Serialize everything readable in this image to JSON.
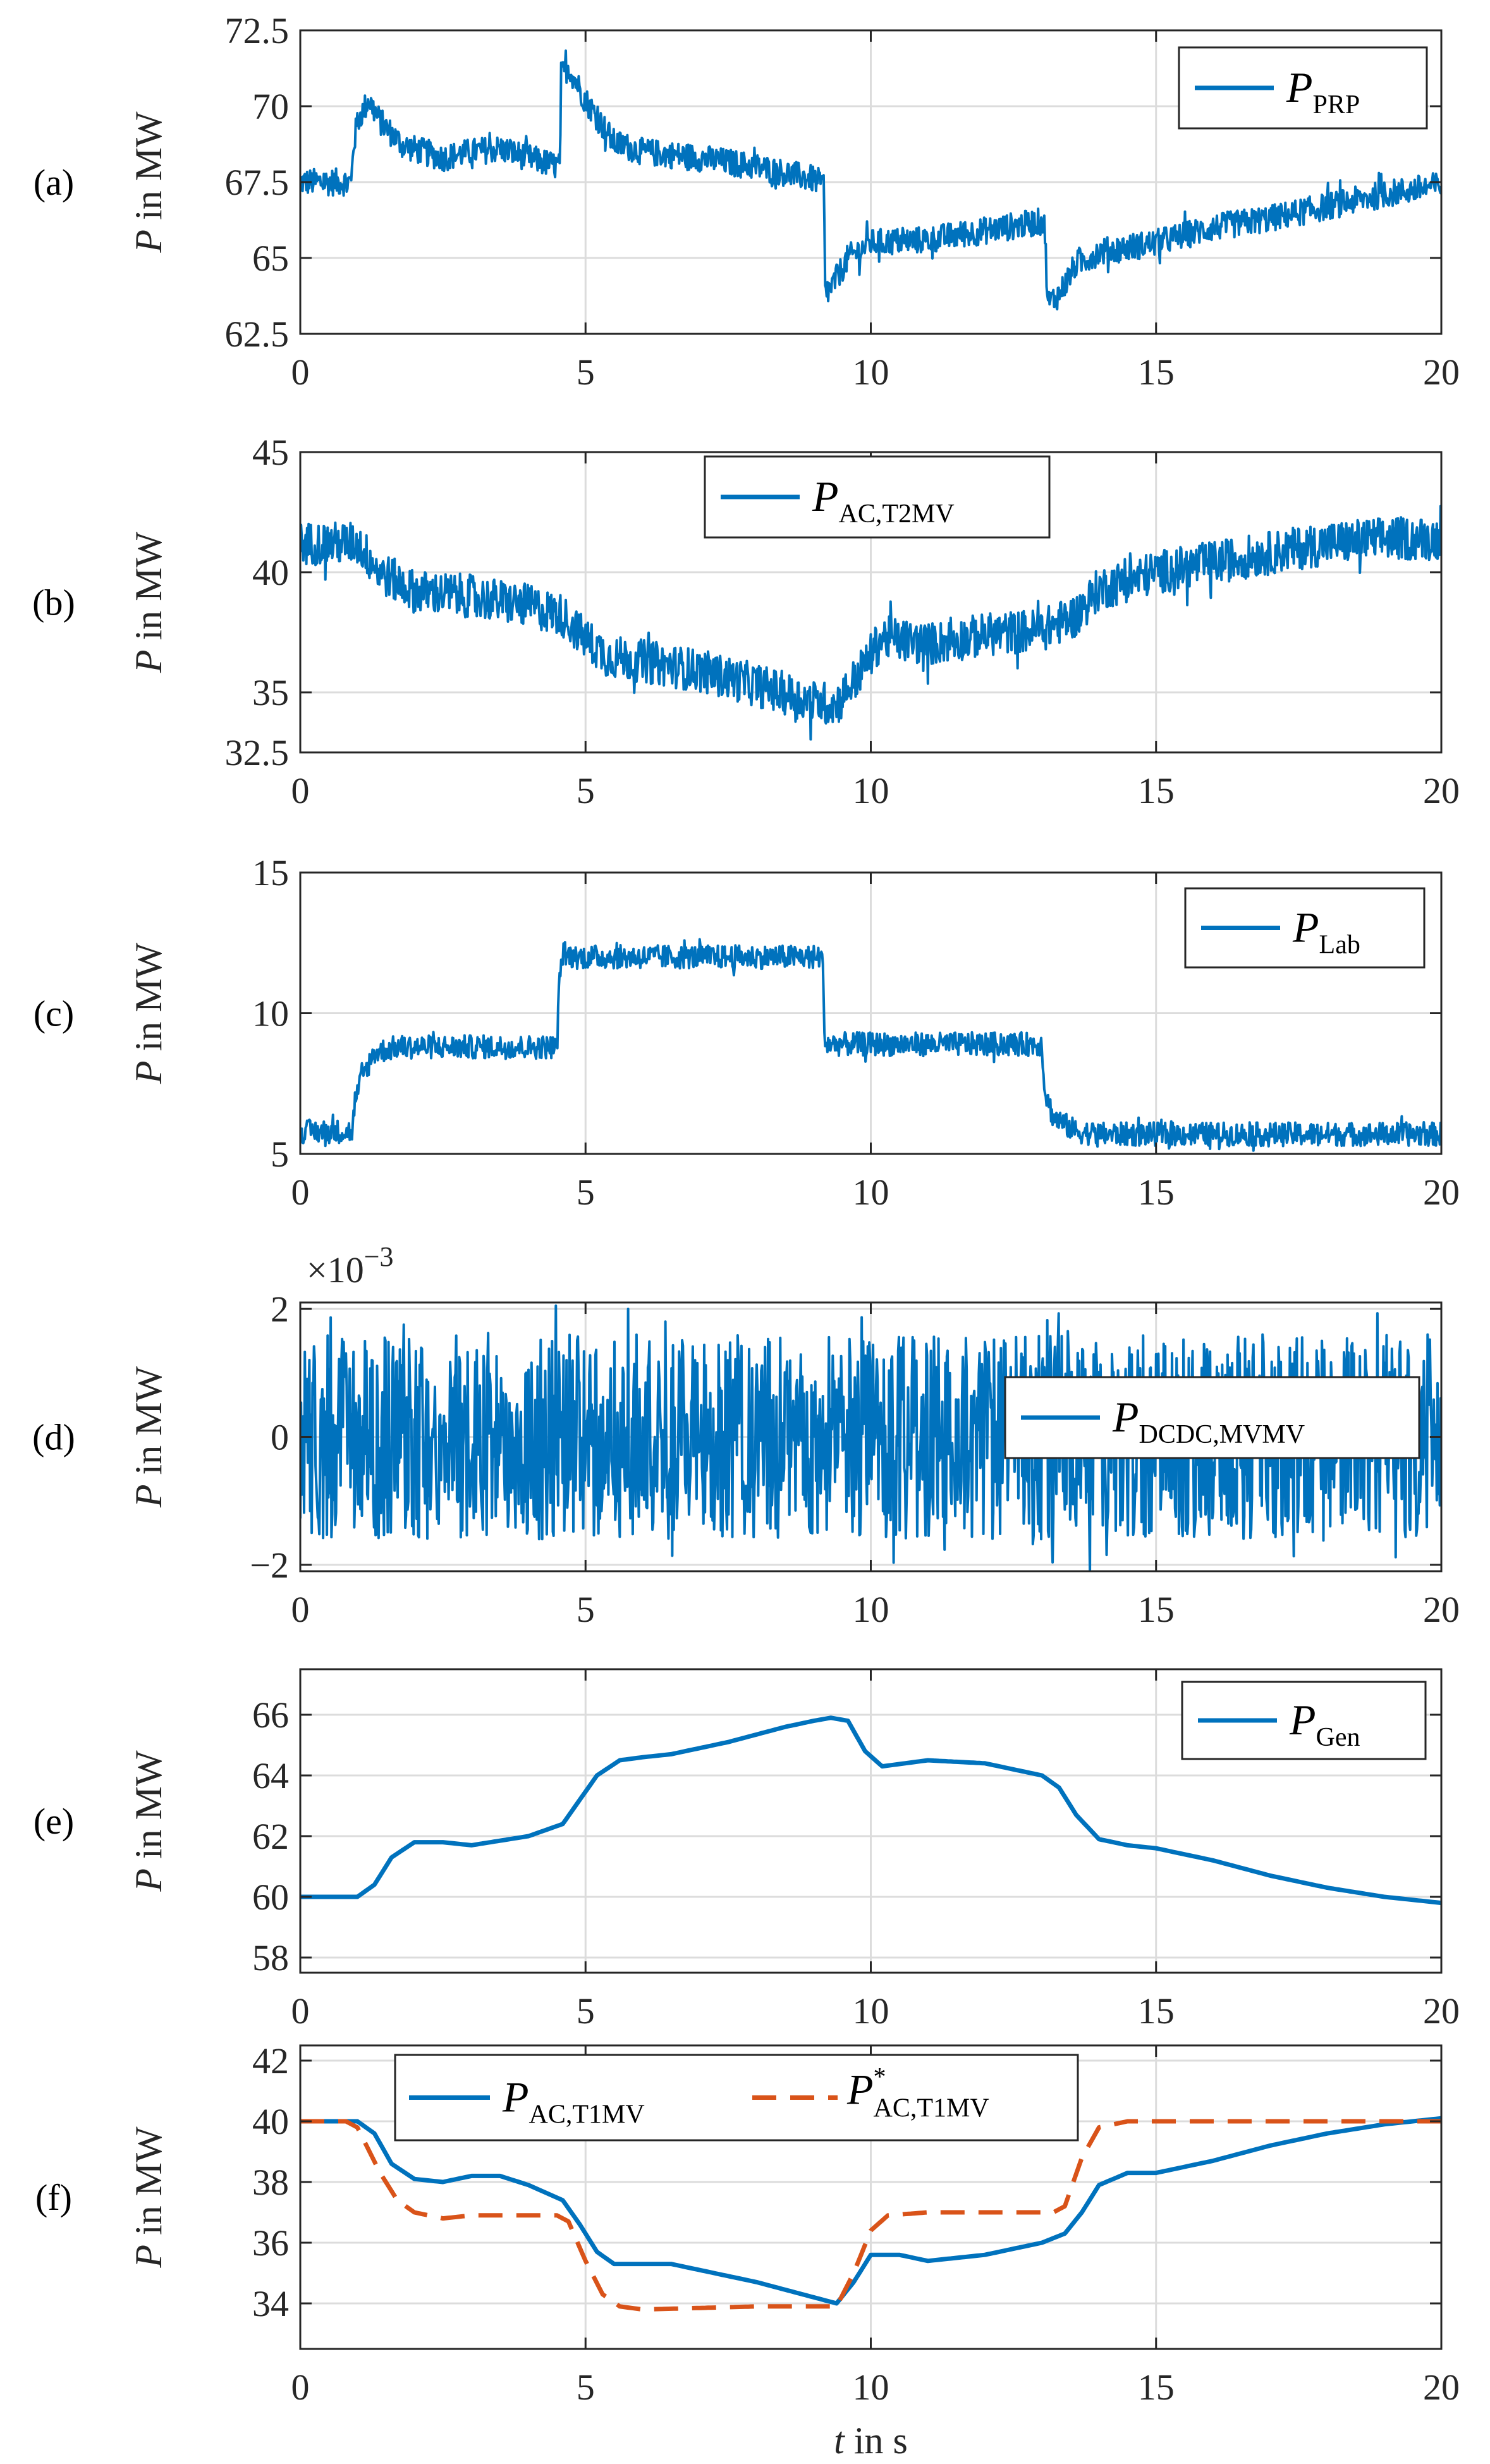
{
  "chart_data": [
    {
      "type": "line",
      "panel_label": "(a)",
      "ylabel": "P in MW",
      "ylabel_italic": "P",
      "ylabel_rest": " in MW",
      "xlabel": "",
      "xlim": [
        0,
        20
      ],
      "ylim": [
        62.5,
        72.5
      ],
      "xticks": [
        0,
        5,
        10,
        15,
        20
      ],
      "yticks": [
        62.5,
        65,
        67.5,
        70,
        72.5
      ],
      "ytick_labels": [
        "62.5",
        "65",
        "67.5",
        "70",
        "72.5"
      ],
      "grid": true,
      "legend": {
        "position": "top-right",
        "entries": [
          {
            "base": "P",
            "sub": "PRP",
            "sup": "",
            "color": "#0072BD",
            "dash": "solid"
          }
        ]
      },
      "series": [
        {
          "name": "P_PRP",
          "color": "#0072BD",
          "noise": 0.45,
          "spike_amp": 0.8,
          "width": 5,
          "dash": "solid",
          "x": [
            0,
            0.9,
            0.92,
            1.0,
            1.2,
            1.4,
            1.8,
            2.5,
            3.0,
            3.5,
            4.0,
            4.55,
            4.57,
            4.7,
            5.0,
            5.5,
            6.0,
            7.0,
            8.0,
            9.0,
            9.18,
            9.2,
            9.3,
            9.6,
            10.0,
            11.0,
            12.0,
            13.0,
            13.05,
            13.1,
            13.3,
            13.6,
            14.0,
            15.0,
            16.0,
            17.0,
            18.0,
            19.0,
            20.0
          ],
          "y": [
            67.5,
            67.5,
            68.5,
            69.5,
            70.2,
            69.5,
            68.7,
            68.3,
            68.5,
            68.6,
            68.3,
            68.0,
            71.0,
            71.3,
            70.2,
            68.8,
            68.5,
            68.3,
            68.0,
            67.6,
            67.4,
            63.8,
            64.0,
            65.0,
            65.5,
            65.6,
            65.9,
            66.2,
            66.0,
            63.5,
            63.8,
            64.8,
            65.2,
            65.5,
            66.0,
            66.3,
            66.7,
            67.1,
            67.4
          ]
        }
      ]
    },
    {
      "type": "line",
      "panel_label": "(b)",
      "ylabel": "P in MW",
      "ylabel_italic": "P",
      "ylabel_rest": " in MW",
      "xlabel": "",
      "xlim": [
        0,
        20
      ],
      "ylim": [
        32.5,
        45
      ],
      "xticks": [
        0,
        5,
        10,
        15,
        20
      ],
      "yticks": [
        32.5,
        35,
        40,
        45
      ],
      "ytick_labels": [
        "32.5",
        "35",
        "40",
        "45"
      ],
      "grid": true,
      "legend": {
        "position": "top-center",
        "entries": [
          {
            "base": "P",
            "sub": "AC,T2MV",
            "sup": "",
            "color": "#0072BD",
            "dash": "solid"
          }
        ]
      },
      "series": [
        {
          "name": "P_AC,T2MV",
          "color": "#0072BD",
          "noise": 0.9,
          "spike_amp": 0.9,
          "width": 5,
          "dash": "solid",
          "x": [
            0,
            1.0,
            1.4,
            2.0,
            3.0,
            4.0,
            4.6,
            5.0,
            5.4,
            6.0,
            7.0,
            8.0,
            9.0,
            9.4,
            9.8,
            10.2,
            11.0,
            12.0,
            13.0,
            13.6,
            14.0,
            15.0,
            16.0,
            17.0,
            18.0,
            19.0,
            20.0
          ],
          "y": [
            41.2,
            41.2,
            40.0,
            39.2,
            39.0,
            38.6,
            38.2,
            37.2,
            36.5,
            36.3,
            35.9,
            35.3,
            34.6,
            34.5,
            35.8,
            37.3,
            37.0,
            37.4,
            37.6,
            38.2,
            39.3,
            40.0,
            40.4,
            40.8,
            41.2,
            41.4,
            41.4
          ]
        }
      ]
    },
    {
      "type": "line",
      "panel_label": "(c)",
      "ylabel": "P in MW",
      "ylabel_italic": "P",
      "ylabel_rest": " in MW",
      "xlabel": "",
      "xlim": [
        0,
        20
      ],
      "ylim": [
        5,
        15
      ],
      "xticks": [
        0,
        5,
        10,
        15,
        20
      ],
      "yticks": [
        5,
        10,
        15
      ],
      "ytick_labels": [
        "5",
        "10",
        "15"
      ],
      "grid": true,
      "legend": {
        "position": "top-right",
        "entries": [
          {
            "base": "P",
            "sub": "Lab",
            "sup": "",
            "color": "#0072BD",
            "dash": "solid"
          }
        ]
      },
      "series": [
        {
          "name": "P_Lab",
          "color": "#0072BD",
          "noise": 0.42,
          "spike_amp": 0.6,
          "width": 5,
          "dash": "solid",
          "x": [
            0,
            0.92,
            0.95,
            1.1,
            1.3,
            1.7,
            2.5,
            4.5,
            4.55,
            4.6,
            4.8,
            9.15,
            9.2,
            9.4,
            13.0,
            13.05,
            13.2,
            13.6,
            14.0,
            20.0
          ],
          "y": [
            5.8,
            5.8,
            6.8,
            7.8,
            8.6,
            8.8,
            8.8,
            8.8,
            11.5,
            12.1,
            12.0,
            12.0,
            8.9,
            8.9,
            8.9,
            7.2,
            6.3,
            5.8,
            5.7,
            5.7
          ]
        }
      ]
    },
    {
      "type": "line",
      "panel_label": "(d)",
      "ylabel": "P in MW",
      "ylabel_italic": "P",
      "ylabel_rest": " in MW",
      "xlabel": "",
      "xlim": [
        0,
        20
      ],
      "ylim": [
        -2.1,
        2.1
      ],
      "axis_multiplier": "×10",
      "axis_multiplier_exp": "−3",
      "xticks": [
        0,
        5,
        10,
        15,
        20
      ],
      "yticks": [
        -2,
        0,
        2
      ],
      "ytick_labels": [
        "−2",
        "0",
        "2"
      ],
      "grid": true,
      "legend": {
        "position": "middle-right",
        "entries": [
          {
            "base": "P",
            "sub": "DCDC,MVMV",
            "sup": "",
            "color": "#0072BD",
            "dash": "solid"
          }
        ]
      },
      "series": [
        {
          "name": "P_DCDC,MVMV",
          "color": "#0072BD",
          "noise": 2.4,
          "spike_amp": 1.6,
          "width": 5,
          "dash": "solid",
          "x": [
            0,
            20
          ],
          "y": [
            0,
            0
          ]
        }
      ]
    },
    {
      "type": "line",
      "panel_label": "(e)",
      "ylabel": "P in MW",
      "ylabel_italic": "P",
      "ylabel_rest": " in MW",
      "xlabel": "",
      "xlim": [
        0,
        20
      ],
      "ylim": [
        57.5,
        67.5
      ],
      "xticks": [
        0,
        5,
        10,
        15,
        20
      ],
      "yticks": [
        58,
        60,
        62,
        64,
        66
      ],
      "ytick_labels": [
        "58",
        "60",
        "62",
        "64",
        "66"
      ],
      "grid": true,
      "legend": {
        "position": "top-right",
        "entries": [
          {
            "base": "P",
            "sub": "Gen",
            "sup": "",
            "color": "#0072BD",
            "dash": "solid"
          }
        ]
      },
      "series": [
        {
          "name": "P_Gen",
          "color": "#0072BD",
          "noise": 0,
          "spike_amp": 0,
          "width": 7,
          "dash": "solid",
          "x": [
            0,
            1.0,
            1.3,
            1.6,
            2.0,
            2.5,
            3.0,
            4.0,
            4.6,
            4.9,
            5.2,
            5.6,
            6.0,
            6.5,
            7.5,
            8.5,
            9.0,
            9.3,
            9.6,
            9.9,
            10.2,
            11.0,
            12.0,
            13.0,
            13.3,
            13.6,
            14.0,
            14.5,
            15.0,
            16.0,
            17.0,
            18.0,
            19.0,
            20.0
          ],
          "y": [
            60.0,
            60.0,
            60.4,
            61.3,
            61.8,
            61.8,
            61.7,
            62.0,
            62.4,
            63.2,
            64.0,
            64.5,
            64.6,
            64.7,
            65.1,
            65.6,
            65.8,
            65.9,
            65.8,
            64.8,
            64.3,
            64.5,
            64.4,
            64.0,
            63.6,
            62.7,
            61.9,
            61.7,
            61.6,
            61.2,
            60.7,
            60.3,
            60.0,
            59.8
          ]
        }
      ]
    },
    {
      "type": "line",
      "panel_label": "(f)",
      "ylabel": "P in MW",
      "ylabel_italic": "P",
      "ylabel_rest": " in MW",
      "xlabel": "t in s",
      "xlabel_italic": "t",
      "xlabel_rest": " in s",
      "xlim": [
        0,
        20
      ],
      "ylim": [
        32.5,
        42.5
      ],
      "xticks": [
        0,
        5,
        10,
        15,
        20
      ],
      "yticks": [
        34,
        36,
        38,
        40,
        42
      ],
      "ytick_labels": [
        "34",
        "36",
        "38",
        "40",
        "42"
      ],
      "grid": true,
      "legend": {
        "position": "top-center",
        "entries": [
          {
            "base": "P",
            "sub": "AC,T1MV",
            "sup": "",
            "color": "#0072BD",
            "dash": "solid"
          },
          {
            "base": "P",
            "sub": "AC,T1MV",
            "sup": "*",
            "color": "#D95319",
            "dash": "dashed"
          }
        ]
      },
      "series": [
        {
          "name": "P_AC,T1MV",
          "color": "#0072BD",
          "noise": 0,
          "spike_amp": 0,
          "width": 7,
          "dash": "solid",
          "x": [
            0,
            1.0,
            1.3,
            1.6,
            2.0,
            2.5,
            3.0,
            3.5,
            4.0,
            4.6,
            4.9,
            5.2,
            5.5,
            6.0,
            6.5,
            7.0,
            8.0,
            9.0,
            9.4,
            9.7,
            10.0,
            10.5,
            11.0,
            12.0,
            13.0,
            13.4,
            13.7,
            14.0,
            14.5,
            15.0,
            16.0,
            17.0,
            18.0,
            19.0,
            20.0
          ],
          "y": [
            40.0,
            40.0,
            39.6,
            38.6,
            38.1,
            38.0,
            38.2,
            38.2,
            37.9,
            37.4,
            36.6,
            35.7,
            35.3,
            35.3,
            35.3,
            35.1,
            34.7,
            34.2,
            34.0,
            34.7,
            35.6,
            35.6,
            35.4,
            35.6,
            36.0,
            36.3,
            37.0,
            37.9,
            38.3,
            38.3,
            38.7,
            39.2,
            39.6,
            39.9,
            40.1
          ]
        },
        {
          "name": "P*_AC,T1MV",
          "color": "#D95319",
          "noise": 0,
          "spike_amp": 0,
          "width": 7,
          "dash": "dashed",
          "x": [
            0,
            0.8,
            1.0,
            1.4,
            1.7,
            2.0,
            2.5,
            3.0,
            4.5,
            4.7,
            5.0,
            5.3,
            5.6,
            6.0,
            8.0,
            9.2,
            9.4,
            9.7,
            10.0,
            10.3,
            11.0,
            13.2,
            13.4,
            13.7,
            14.0,
            14.5,
            15.0,
            20.0
          ],
          "y": [
            40.0,
            40.0,
            39.8,
            38.3,
            37.4,
            37.0,
            36.8,
            36.9,
            36.9,
            36.7,
            35.4,
            34.3,
            33.9,
            33.8,
            33.9,
            33.9,
            33.9,
            35.0,
            36.4,
            36.9,
            37.0,
            37.0,
            37.2,
            38.8,
            39.8,
            40.0,
            40.0,
            40.0
          ]
        }
      ]
    }
  ]
}
